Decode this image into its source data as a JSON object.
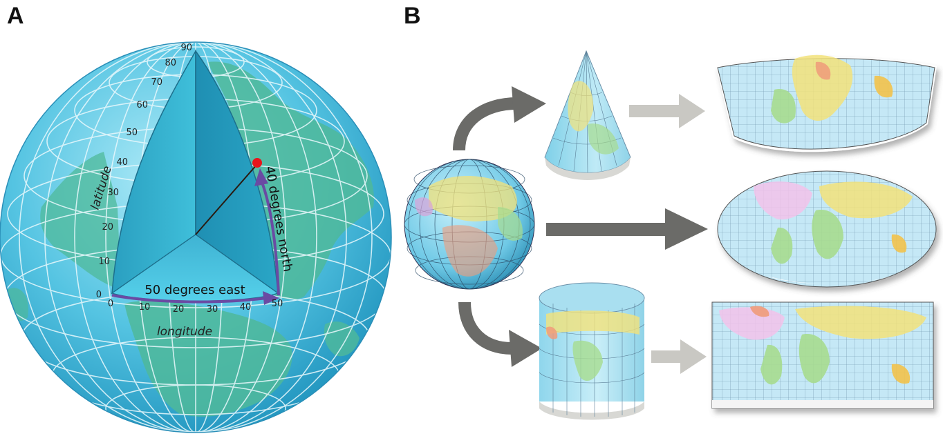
{
  "panels": {
    "a": {
      "label": "A"
    },
    "b": {
      "label": "B"
    }
  },
  "globe": {
    "latitude_title": "latitude",
    "longitude_title": "longitude",
    "latitude_ticks": [
      "0",
      "10",
      "20",
      "30",
      "40",
      "50",
      "60",
      "70",
      "80",
      "90"
    ],
    "longitude_ticks": [
      "0",
      "10",
      "20",
      "30",
      "40",
      "50"
    ],
    "east_label": "50 degrees east",
    "north_label": "40 degrees north",
    "point_latitude": 40,
    "point_longitude": 50,
    "colors": {
      "ocean": "#5fcbe6",
      "land": "#4fb99a",
      "wedge": "#2aa6c6",
      "arrow": "#6a4ba3",
      "point": "#e8161b"
    }
  },
  "projections": {
    "source": "globe",
    "targets": [
      "conic",
      "pseudocylindrical",
      "cylindrical"
    ],
    "colors": {
      "dark_arrow": "#6b6b68",
      "light_arrow": "#c9c8c3",
      "map_water": "#bfe6f5"
    }
  }
}
